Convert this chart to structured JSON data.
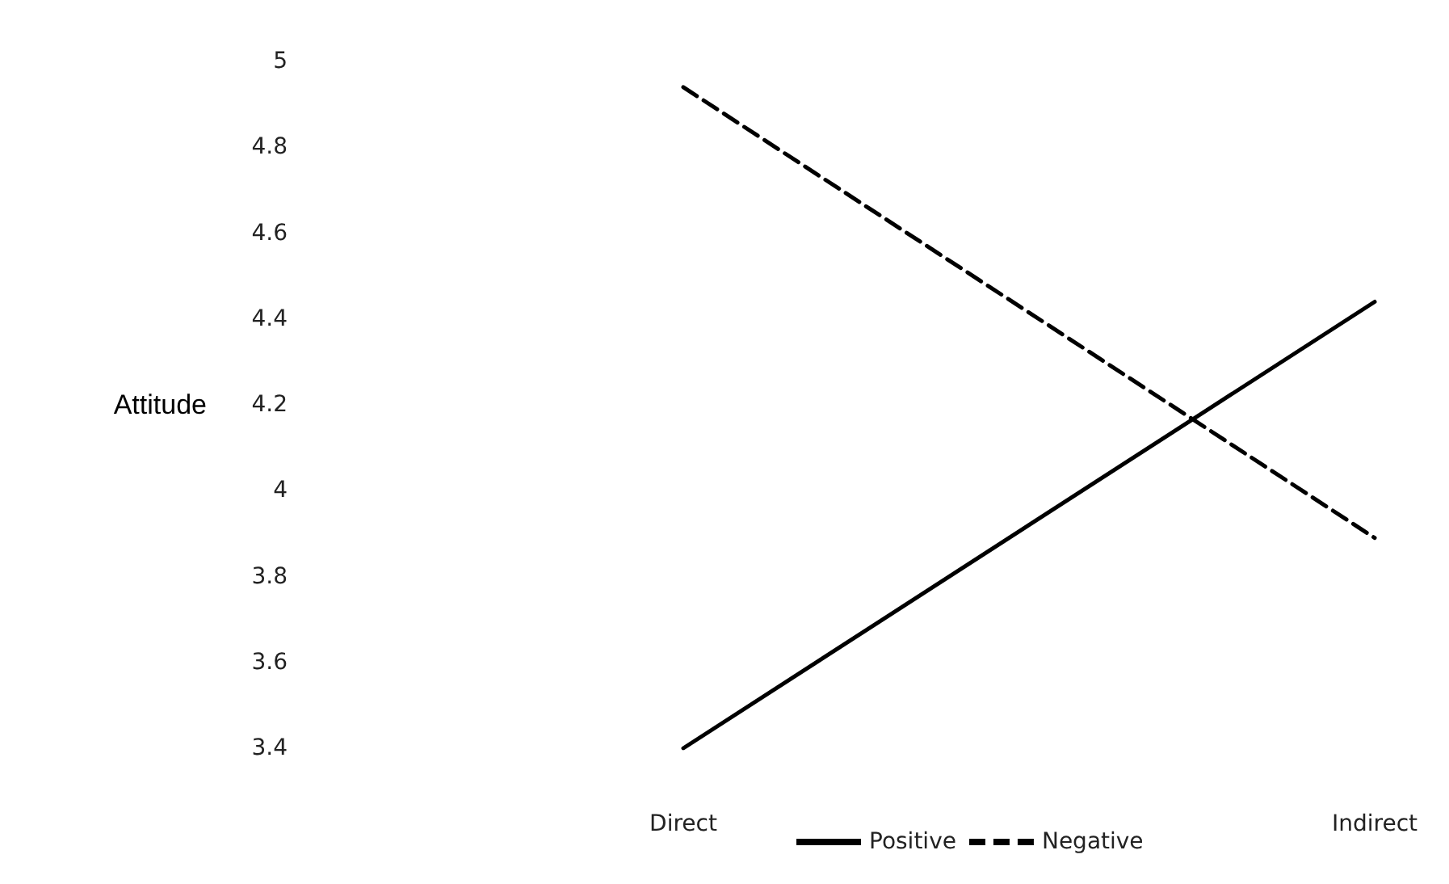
{
  "chart_data": {
    "type": "line",
    "ylabel": "Attitude",
    "categories": [
      "Direct",
      "Indirect"
    ],
    "series": [
      {
        "name": "Positive",
        "color": "#000000",
        "values": [
          3.4,
          4.44
        ],
        "line_style": "solid"
      },
      {
        "name": "Negative",
        "color": "#000000",
        "values": [
          4.94,
          3.89
        ],
        "line_style": "dashed"
      }
    ],
    "ylim": [
      3.4,
      5
    ],
    "yticks": [
      3.4,
      3.6,
      3.8,
      4,
      4.2,
      4.4,
      4.6,
      4.8,
      5
    ],
    "grid": false,
    "legend": "bottom",
    "marker": "none"
  }
}
